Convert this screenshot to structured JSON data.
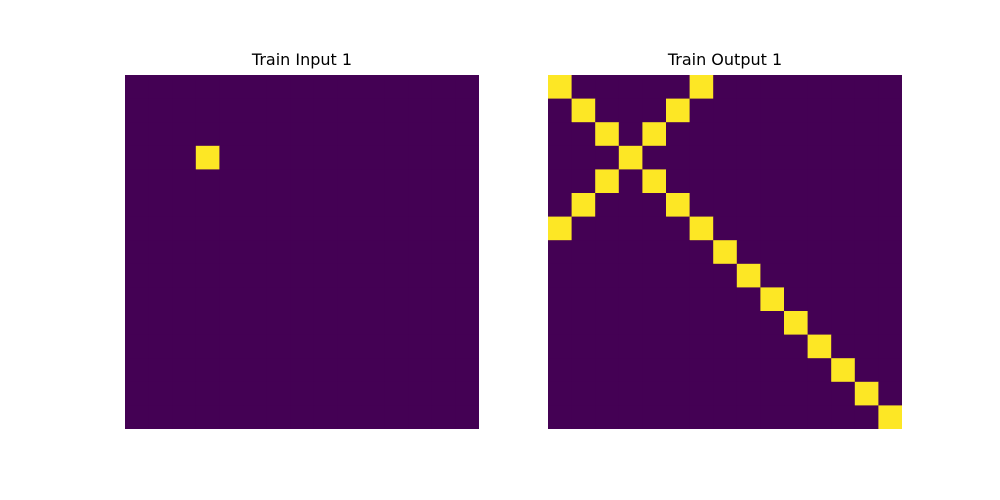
{
  "chart_data": [
    {
      "type": "heatmap",
      "title": "Train Input 1",
      "rows": 15,
      "cols": 15,
      "colors": {
        "0": "#440154",
        "1": "#fde725"
      },
      "cells": [
        [
          0,
          0,
          0,
          0,
          0,
          0,
          0,
          0,
          0,
          0,
          0,
          0,
          0,
          0,
          0
        ],
        [
          0,
          0,
          0,
          0,
          0,
          0,
          0,
          0,
          0,
          0,
          0,
          0,
          0,
          0,
          0
        ],
        [
          0,
          0,
          0,
          0,
          0,
          0,
          0,
          0,
          0,
          0,
          0,
          0,
          0,
          0,
          0
        ],
        [
          0,
          0,
          0,
          1,
          0,
          0,
          0,
          0,
          0,
          0,
          0,
          0,
          0,
          0,
          0
        ],
        [
          0,
          0,
          0,
          0,
          0,
          0,
          0,
          0,
          0,
          0,
          0,
          0,
          0,
          0,
          0
        ],
        [
          0,
          0,
          0,
          0,
          0,
          0,
          0,
          0,
          0,
          0,
          0,
          0,
          0,
          0,
          0
        ],
        [
          0,
          0,
          0,
          0,
          0,
          0,
          0,
          0,
          0,
          0,
          0,
          0,
          0,
          0,
          0
        ],
        [
          0,
          0,
          0,
          0,
          0,
          0,
          0,
          0,
          0,
          0,
          0,
          0,
          0,
          0,
          0
        ],
        [
          0,
          0,
          0,
          0,
          0,
          0,
          0,
          0,
          0,
          0,
          0,
          0,
          0,
          0,
          0
        ],
        [
          0,
          0,
          0,
          0,
          0,
          0,
          0,
          0,
          0,
          0,
          0,
          0,
          0,
          0,
          0
        ],
        [
          0,
          0,
          0,
          0,
          0,
          0,
          0,
          0,
          0,
          0,
          0,
          0,
          0,
          0,
          0
        ],
        [
          0,
          0,
          0,
          0,
          0,
          0,
          0,
          0,
          0,
          0,
          0,
          0,
          0,
          0,
          0
        ],
        [
          0,
          0,
          0,
          0,
          0,
          0,
          0,
          0,
          0,
          0,
          0,
          0,
          0,
          0,
          0
        ],
        [
          0,
          0,
          0,
          0,
          0,
          0,
          0,
          0,
          0,
          0,
          0,
          0,
          0,
          0,
          0
        ],
        [
          0,
          0,
          0,
          0,
          0,
          0,
          0,
          0,
          0,
          0,
          0,
          0,
          0,
          0,
          0
        ]
      ]
    },
    {
      "type": "heatmap",
      "title": "Train Output 1",
      "rows": 15,
      "cols": 15,
      "colors": {
        "0": "#440154",
        "1": "#fde725"
      },
      "cells": [
        [
          1,
          0,
          0,
          0,
          0,
          0,
          1,
          0,
          0,
          0,
          0,
          0,
          0,
          0,
          0
        ],
        [
          0,
          1,
          0,
          0,
          0,
          1,
          0,
          0,
          0,
          0,
          0,
          0,
          0,
          0,
          0
        ],
        [
          0,
          0,
          1,
          0,
          1,
          0,
          0,
          0,
          0,
          0,
          0,
          0,
          0,
          0,
          0
        ],
        [
          0,
          0,
          0,
          1,
          0,
          0,
          0,
          0,
          0,
          0,
          0,
          0,
          0,
          0,
          0
        ],
        [
          0,
          0,
          1,
          0,
          1,
          0,
          0,
          0,
          0,
          0,
          0,
          0,
          0,
          0,
          0
        ],
        [
          0,
          1,
          0,
          0,
          0,
          1,
          0,
          0,
          0,
          0,
          0,
          0,
          0,
          0,
          0
        ],
        [
          1,
          0,
          0,
          0,
          0,
          0,
          1,
          0,
          0,
          0,
          0,
          0,
          0,
          0,
          0
        ],
        [
          0,
          0,
          0,
          0,
          0,
          0,
          0,
          1,
          0,
          0,
          0,
          0,
          0,
          0,
          0
        ],
        [
          0,
          0,
          0,
          0,
          0,
          0,
          0,
          0,
          1,
          0,
          0,
          0,
          0,
          0,
          0
        ],
        [
          0,
          0,
          0,
          0,
          0,
          0,
          0,
          0,
          0,
          1,
          0,
          0,
          0,
          0,
          0
        ],
        [
          0,
          0,
          0,
          0,
          0,
          0,
          0,
          0,
          0,
          0,
          1,
          0,
          0,
          0,
          0
        ],
        [
          0,
          0,
          0,
          0,
          0,
          0,
          0,
          0,
          0,
          0,
          0,
          1,
          0,
          0,
          0
        ],
        [
          0,
          0,
          0,
          0,
          0,
          0,
          0,
          0,
          0,
          0,
          0,
          0,
          1,
          0,
          0
        ],
        [
          0,
          0,
          0,
          0,
          0,
          0,
          0,
          0,
          0,
          0,
          0,
          0,
          0,
          1,
          0
        ],
        [
          0,
          0,
          0,
          0,
          0,
          0,
          0,
          0,
          0,
          0,
          0,
          0,
          0,
          0,
          1
        ]
      ]
    }
  ]
}
